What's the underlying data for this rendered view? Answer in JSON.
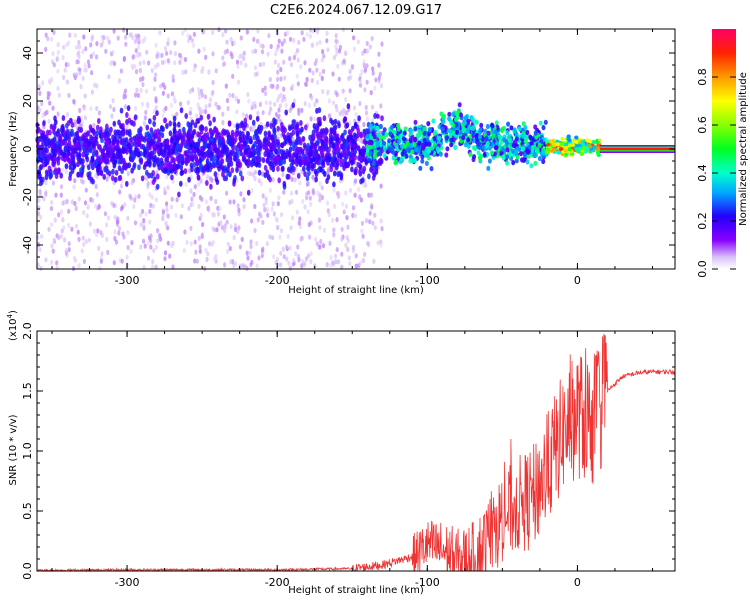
{
  "title": "C2E6.2024.067.12.09.G17",
  "colors": {
    "snr_line": "#ee3333",
    "band_low": "#5500dd",
    "band_mid": "#00e0ff",
    "band_high": "#ff2020"
  },
  "chart_data": [
    {
      "type": "heatmap",
      "xlabel": "Height of straight line (km)",
      "ylabel": "Frequency (Hz)",
      "xlim": [
        -360,
        65
      ],
      "ylim": [
        -50,
        50
      ],
      "x_ticks": [
        -300,
        -200,
        -100,
        0
      ],
      "y_ticks": [
        -40,
        -20,
        0,
        20,
        40
      ],
      "colorbar": {
        "label": "Normalized spectral amplitude",
        "range": [
          0.0,
          1.0
        ],
        "ticks": [
          "0.0",
          "0.2",
          "0.4",
          "0.6",
          "0.8"
        ],
        "colormap": "rainbow"
      },
      "regions": [
        {
          "x_range": [
            -360,
            -140
          ],
          "freq_spread": 50,
          "core_spread": 10,
          "amplitude": 0.1
        },
        {
          "x_range": [
            -140,
            -20
          ],
          "freq_center": 2,
          "core_spread": 8,
          "amplitude": 0.4
        },
        {
          "x_range": [
            -20,
            15
          ],
          "freq_center": 1,
          "core_spread": 3,
          "amplitude": 0.8
        },
        {
          "x_range": [
            15,
            65
          ],
          "freq_center": 0,
          "core_spread": 1,
          "amplitude": 1.0
        }
      ]
    },
    {
      "type": "line",
      "xlabel": "Height of straight line (km)",
      "ylabel": "SNR (10 * v/v)",
      "y_multiplier": "(x10",
      "y_multiplier_exp": "4",
      "y_multiplier_close": ")",
      "xlim": [
        -360,
        65
      ],
      "ylim": [
        0,
        2.0
      ],
      "x_ticks": [
        -300,
        -200,
        -100,
        0
      ],
      "y_ticks": [
        "0.0",
        "0.5",
        "1.0",
        "1.5",
        "2.0"
      ],
      "series": [
        {
          "x": [
            -360,
            -300,
            -200,
            -150,
            -130,
            -110,
            -100,
            -90,
            -80,
            -70,
            -60,
            -50,
            -40,
            -30,
            -20,
            -10,
            0,
            10,
            20,
            30,
            40,
            50,
            65
          ],
          "y": [
            0.005,
            0.01,
            0.01,
            0.02,
            0.05,
            0.12,
            0.22,
            0.18,
            0.08,
            0.1,
            0.25,
            0.45,
            0.55,
            0.6,
            0.85,
            1.15,
            1.3,
            1.25,
            1.5,
            1.62,
            1.65,
            1.66,
            1.66
          ]
        }
      ]
    }
  ]
}
